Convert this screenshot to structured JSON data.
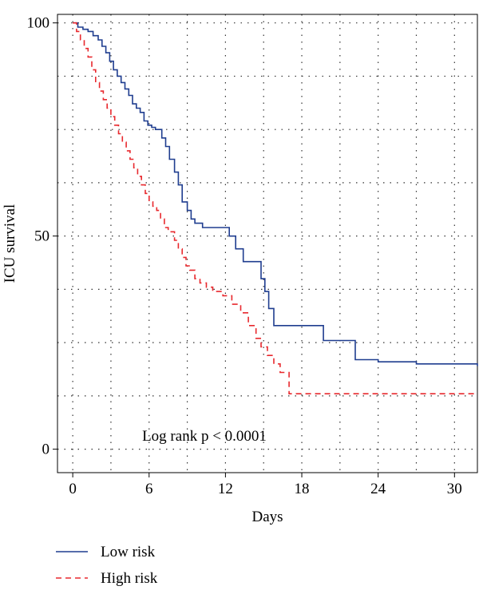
{
  "chart_data": {
    "type": "line",
    "title": "",
    "xlabel": "Days",
    "ylabel": "ICU survival",
    "xlim": [
      -1.2,
      31.8
    ],
    "ylim": [
      -5.5,
      102
    ],
    "xticks": [
      0,
      6,
      12,
      18,
      24,
      30
    ],
    "yticks": [
      0,
      50,
      100
    ],
    "ygrid": [
      0,
      12.5,
      25,
      37.5,
      50,
      62.5,
      75,
      87.5,
      100
    ],
    "grid": true,
    "annotation": "Log rank p < 0.0001",
    "legend_position": "bottom-left",
    "series": [
      {
        "name": "Low risk",
        "color": "#1f3d8f",
        "style": "solid",
        "x": [
          0,
          0.4,
          0.8,
          1.2,
          1.6,
          2.0,
          2.3,
          2.6,
          2.9,
          3.2,
          3.5,
          3.8,
          4.1,
          4.4,
          4.7,
          5.0,
          5.3,
          5.6,
          5.9,
          6.2,
          6.5,
          7.0,
          7.3,
          7.6,
          8.0,
          8.3,
          8.6,
          9.0,
          9.3,
          9.6,
          10.2,
          11.0,
          12.3,
          12.8,
          13.4,
          14.8,
          15.1,
          15.4,
          15.8,
          17.0,
          18.8,
          19.7,
          21.2,
          22.2,
          24.0,
          27.0,
          31.8
        ],
        "y": [
          100,
          99,
          98.5,
          98,
          97,
          96,
          94.5,
          93,
          91,
          89,
          87.5,
          86,
          84.5,
          83,
          81,
          80,
          79,
          77,
          76,
          75.5,
          75,
          73,
          71,
          68,
          65,
          62,
          58,
          56,
          54,
          53,
          52,
          52,
          50,
          47,
          44,
          40,
          37,
          33,
          29,
          29,
          29,
          25.5,
          25.5,
          21,
          20.5,
          20,
          19.5
        ]
      },
      {
        "name": "High risk",
        "color": "#e8292e",
        "style": "dashed",
        "x": [
          0,
          0.3,
          0.6,
          0.9,
          1.2,
          1.5,
          1.8,
          2.1,
          2.4,
          2.7,
          3.0,
          3.3,
          3.6,
          3.9,
          4.2,
          4.5,
          4.8,
          5.1,
          5.4,
          5.7,
          6.0,
          6.3,
          6.6,
          6.9,
          7.2,
          7.5,
          8.0,
          8.3,
          8.6,
          8.9,
          9.2,
          9.6,
          10.0,
          10.5,
          11.0,
          11.8,
          12.5,
          13.2,
          13.8,
          14.4,
          14.8,
          15.3,
          15.8,
          16.3,
          17.0,
          18.5,
          21.0,
          25.0,
          31.8
        ],
        "y": [
          100,
          98,
          96,
          94,
          92,
          89,
          86,
          84,
          82,
          80,
          78,
          76,
          74,
          72,
          70,
          68,
          66,
          64,
          62,
          60,
          58,
          57,
          56,
          54,
          52,
          51,
          49,
          47,
          45,
          43,
          42,
          40,
          39,
          38,
          37,
          36,
          34,
          32,
          29,
          26,
          24,
          22,
          20,
          18,
          13,
          13,
          13,
          13,
          13
        ]
      }
    ]
  }
}
